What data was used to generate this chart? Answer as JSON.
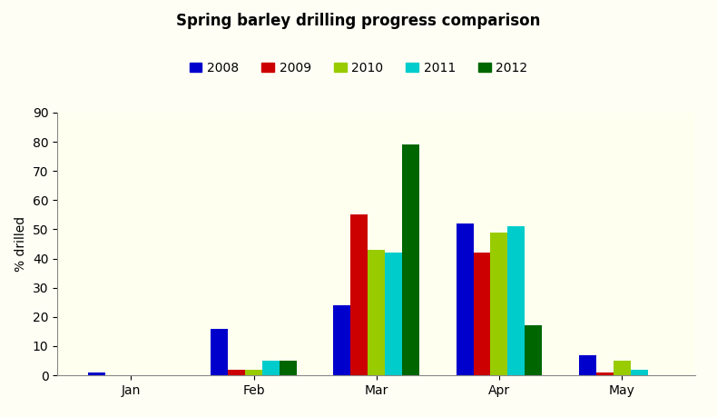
{
  "title": "Spring barley drilling progress comparison",
  "ylabel": "% drilled",
  "categories": [
    "Jan",
    "Feb",
    "Mar",
    "Apr",
    "May"
  ],
  "series": {
    "2008": [
      1,
      16,
      24,
      52,
      7
    ],
    "2009": [
      0,
      2,
      55,
      42,
      1
    ],
    "2010": [
      0,
      2,
      43,
      49,
      5
    ],
    "2011": [
      0,
      5,
      42,
      51,
      2
    ],
    "2012": [
      0,
      5,
      79,
      17,
      0
    ]
  },
  "colors": {
    "2008": "#0000CC",
    "2009": "#CC0000",
    "2010": "#99CC00",
    "2011": "#00CCCC",
    "2012": "#006600"
  },
  "years": [
    "2008",
    "2009",
    "2010",
    "2011",
    "2012"
  ],
  "ylim": [
    0,
    90
  ],
  "yticks": [
    0,
    10,
    20,
    30,
    40,
    50,
    60,
    70,
    80,
    90
  ],
  "background_color": "#FEFEF5",
  "plot_bg_color": "#FFFFF0",
  "title_fontsize": 12,
  "legend_fontsize": 10,
  "axis_fontsize": 10,
  "bar_width": 0.14
}
